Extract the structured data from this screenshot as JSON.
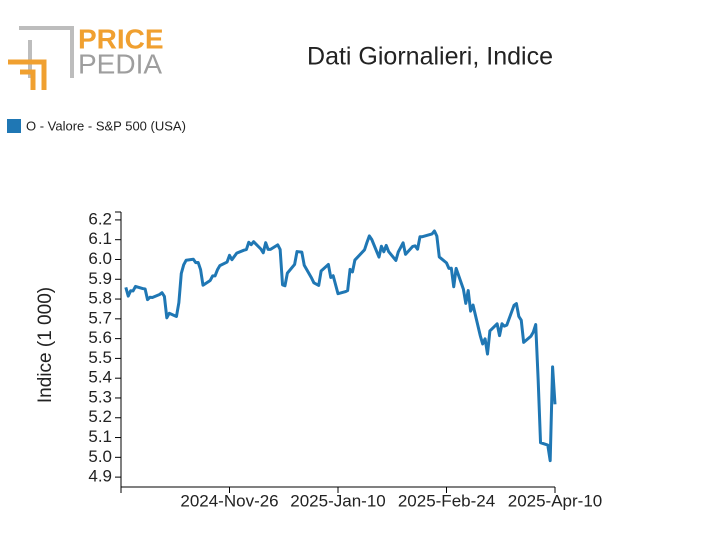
{
  "logo": {
    "first": "PRICE",
    "second": "PEDIA"
  },
  "chart_data": {
    "type": "line",
    "title": "Dati Giornalieri, Indice",
    "y_label": "Indice (1 000)",
    "x": [
      "2024-10-14",
      "2024-10-15",
      "2024-10-16",
      "2024-10-17",
      "2024-10-18",
      "2024-10-21",
      "2024-10-22",
      "2024-10-23",
      "2024-10-24",
      "2024-10-25",
      "2024-10-28",
      "2024-10-29",
      "2024-10-30",
      "2024-10-31",
      "2024-11-01",
      "2024-11-04",
      "2024-11-05",
      "2024-11-06",
      "2024-11-07",
      "2024-11-08",
      "2024-11-11",
      "2024-11-12",
      "2024-11-13",
      "2024-11-14",
      "2024-11-15",
      "2024-11-18",
      "2024-11-19",
      "2024-11-20",
      "2024-11-21",
      "2024-11-22",
      "2024-11-25",
      "2024-11-26",
      "2024-11-27",
      "2024-11-29",
      "2024-12-02",
      "2024-12-03",
      "2024-12-04",
      "2024-12-05",
      "2024-12-06",
      "2024-12-09",
      "2024-12-10",
      "2024-12-11",
      "2024-12-12",
      "2024-12-13",
      "2024-12-16",
      "2024-12-17",
      "2024-12-18",
      "2024-12-19",
      "2024-12-20",
      "2024-12-23",
      "2024-12-24",
      "2024-12-26",
      "2024-12-27",
      "2024-12-30",
      "2024-12-31",
      "2025-01-02",
      "2025-01-03",
      "2025-01-06",
      "2025-01-07",
      "2025-01-08",
      "2025-01-10",
      "2025-01-13",
      "2025-01-14",
      "2025-01-15",
      "2025-01-16",
      "2025-01-17",
      "2025-01-21",
      "2025-01-22",
      "2025-01-23",
      "2025-01-24",
      "2025-01-27",
      "2025-01-28",
      "2025-01-29",
      "2025-01-30",
      "2025-01-31",
      "2025-02-03",
      "2025-02-04",
      "2025-02-05",
      "2025-02-06",
      "2025-02-07",
      "2025-02-10",
      "2025-02-11",
      "2025-02-12",
      "2025-02-13",
      "2025-02-14",
      "2025-02-18",
      "2025-02-19",
      "2025-02-20",
      "2025-02-21",
      "2025-02-24",
      "2025-02-25",
      "2025-02-26",
      "2025-02-27",
      "2025-02-28",
      "2025-03-03",
      "2025-03-04",
      "2025-03-05",
      "2025-03-06",
      "2025-03-07",
      "2025-03-10",
      "2025-03-11",
      "2025-03-12",
      "2025-03-13",
      "2025-03-14",
      "2025-03-17",
      "2025-03-18",
      "2025-03-19",
      "2025-03-20",
      "2025-03-21",
      "2025-03-24",
      "2025-03-25",
      "2025-03-26",
      "2025-03-27",
      "2025-03-28",
      "2025-03-31",
      "2025-04-01",
      "2025-04-02",
      "2025-04-03",
      "2025-04-04",
      "2025-04-07",
      "2025-04-08",
      "2025-04-09",
      "2025-04-10"
    ],
    "series": [
      {
        "name": "O - Valore - S&P 500 (USA)",
        "color": "#1f77b4",
        "values": [
          5.859,
          5.815,
          5.842,
          5.841,
          5.864,
          5.853,
          5.851,
          5.797,
          5.809,
          5.808,
          5.823,
          5.832,
          5.813,
          5.705,
          5.728,
          5.712,
          5.782,
          5.929,
          5.973,
          5.996,
          6.001,
          5.984,
          5.985,
          5.949,
          5.87,
          5.894,
          5.917,
          5.917,
          5.948,
          5.969,
          5.987,
          6.021,
          5.999,
          6.032,
          6.047,
          6.05,
          6.087,
          6.075,
          6.09,
          6.053,
          6.034,
          6.085,
          6.051,
          6.051,
          6.074,
          6.051,
          5.872,
          5.867,
          5.931,
          5.975,
          6.04,
          6.037,
          5.971,
          5.907,
          5.882,
          5.869,
          5.942,
          5.975,
          5.909,
          5.918,
          5.827,
          5.837,
          5.843,
          5.95,
          5.937,
          5.997,
          6.049,
          6.086,
          6.119,
          6.101,
          6.012,
          6.067,
          6.039,
          6.071,
          6.04,
          5.995,
          6.038,
          6.061,
          6.084,
          6.026,
          6.066,
          6.069,
          6.052,
          6.115,
          6.115,
          6.129,
          6.144,
          6.118,
          6.013,
          5.983,
          5.955,
          5.956,
          5.862,
          5.955,
          5.85,
          5.778,
          5.843,
          5.739,
          5.77,
          5.615,
          5.573,
          5.599,
          5.522,
          5.639,
          5.675,
          5.615,
          5.675,
          5.663,
          5.668,
          5.768,
          5.777,
          5.712,
          5.693,
          5.581,
          5.612,
          5.633,
          5.671,
          5.397,
          5.074,
          5.062,
          4.983,
          5.457,
          5.268
        ]
      }
    ],
    "xlim": [
      "2024-10-12",
      "2025-04-10"
    ],
    "xticks": [
      {
        "value": "2024-11-26",
        "label": "2024-Nov-26"
      },
      {
        "value": "2025-01-10",
        "label": "2025-Jan-10"
      },
      {
        "value": "2025-02-24",
        "label": "2025-Feb-24"
      },
      {
        "value": "2025-04-10",
        "label": "2025-Apr-10"
      }
    ],
    "ylim": [
      4.85,
      6.24
    ],
    "yticks": [
      {
        "value": 4.9,
        "label": "4.9"
      },
      {
        "value": 5,
        "label": "5.0"
      },
      5.1,
      5.2,
      5.3,
      5.4,
      5.5,
      5.6,
      5.7,
      5.8,
      5.9,
      {
        "value": 6,
        "label": "6.0"
      },
      6.1,
      6.2
    ],
    "legend": "top-left"
  }
}
